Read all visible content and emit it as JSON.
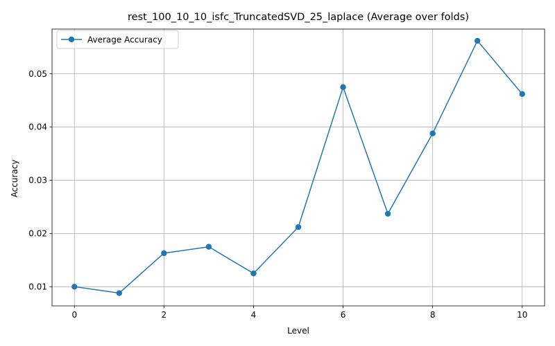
{
  "chart_data": {
    "type": "line",
    "title": "rest_100_10_10_isfc_TruncatedSVD_25_laplace (Average over folds)",
    "xlabel": "Level",
    "ylabel": "Accuracy",
    "xlim": [
      -0.5,
      10.5
    ],
    "ylim": [
      0.0064,
      0.0584
    ],
    "xticks": [
      0,
      2,
      4,
      6,
      8,
      10
    ],
    "yticks": [
      0.01,
      0.02,
      0.03,
      0.04,
      0.05
    ],
    "ytick_labels": [
      "0.01",
      "0.02",
      "0.03",
      "0.04",
      "0.05"
    ],
    "grid": true,
    "legend_position": "top-left",
    "x": [
      0,
      1,
      2,
      3,
      4,
      5,
      6,
      7,
      8,
      9,
      10
    ],
    "series": [
      {
        "name": "Average Accuracy",
        "color": "#1f77b4",
        "marker": "circle",
        "values": [
          0.01,
          0.0088,
          0.0163,
          0.0175,
          0.0125,
          0.0212,
          0.0475,
          0.0237,
          0.0388,
          0.0562,
          0.0462
        ]
      }
    ]
  }
}
